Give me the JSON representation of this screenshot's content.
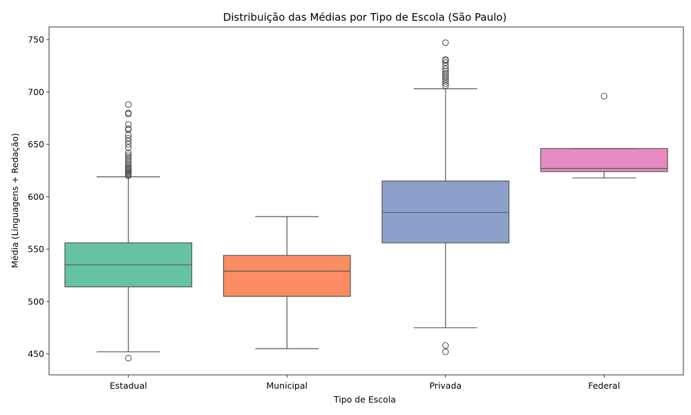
{
  "chart_data": {
    "type": "boxplot",
    "title": "Distribuição das Médias por Tipo de Escola (São Paulo)",
    "xlabel": "Tipo de Escola",
    "ylabel": "Média (Linguagens + Redação)",
    "ylim": [
      430,
      762
    ],
    "yticks": [
      450,
      500,
      550,
      600,
      650,
      700,
      750
    ],
    "grid": false,
    "legend": "none",
    "categories": [
      "Estadual",
      "Municipal",
      "Privada",
      "Federal"
    ],
    "colors": [
      "#66c2a5",
      "#fc8d62",
      "#8da0cb",
      "#e78ac3"
    ],
    "boxes": [
      {
        "category": "Estadual",
        "whisker_low": 452,
        "q1": 514,
        "median": 535,
        "q3": 556,
        "whisker_high": 619,
        "outliers": [
          446,
          620,
          621,
          622,
          623,
          624,
          625,
          626,
          627,
          628,
          630,
          632,
          634,
          636,
          638,
          640,
          642,
          647,
          650,
          653,
          656,
          659,
          664,
          665,
          669,
          679,
          680,
          688
        ]
      },
      {
        "category": "Municipal",
        "whisker_low": 455,
        "q1": 505,
        "median": 529,
        "q3": 544,
        "whisker_high": 581,
        "outliers": []
      },
      {
        "category": "Privada",
        "whisker_low": 475,
        "q1": 556,
        "median": 585,
        "q3": 615,
        "whisker_high": 703,
        "outliers": [
          452,
          458,
          706,
          708,
          710,
          712,
          714,
          716,
          718,
          720,
          722,
          725,
          728,
          730,
          731,
          747
        ]
      },
      {
        "category": "Federal",
        "whisker_low": 618,
        "q1": 624,
        "median": 627,
        "q3": 646,
        "whisker_high": 646,
        "outliers": [
          696
        ]
      }
    ]
  }
}
